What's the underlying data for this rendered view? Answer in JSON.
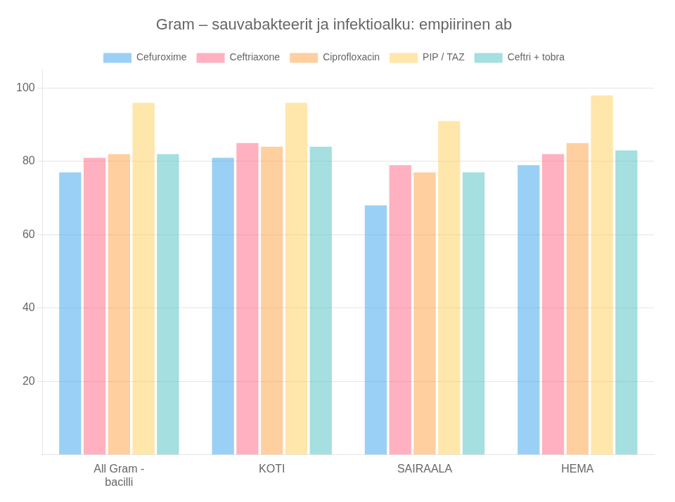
{
  "chart_data": {
    "type": "bar",
    "title": "Gram – sauvabakteerit ja infektioalku: empiirinen ab",
    "categories": [
      "All Gram -\nbacilli",
      "KOTI",
      "SAIRAALA",
      "HEMA"
    ],
    "series": [
      {
        "name": "Cefuroxime",
        "values": [
          77,
          81,
          68,
          79
        ]
      },
      {
        "name": "Ceftriaxone",
        "values": [
          81,
          85,
          79,
          82
        ]
      },
      {
        "name": "Ciprofloxacin",
        "values": [
          82,
          84,
          77,
          85
        ]
      },
      {
        "name": "PIP / TAZ",
        "values": [
          96,
          96,
          91,
          98
        ]
      },
      {
        "name": "Ceftri + tobra",
        "values": [
          82,
          84,
          77,
          83
        ]
      }
    ],
    "ylim": [
      0,
      105
    ],
    "yticks": [
      20,
      40,
      60,
      80,
      100
    ],
    "grid": true,
    "legend": "top"
  }
}
